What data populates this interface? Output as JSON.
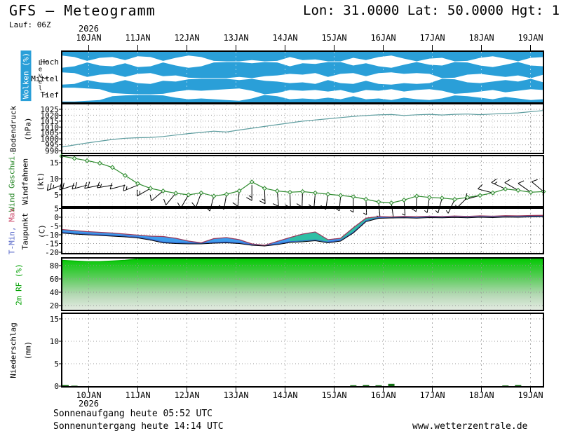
{
  "header": {
    "title": "GFS – Meteogramm",
    "coords": "Lon: 31.0000 Lat: 50.0000 Hgt: 1",
    "run": "Lauf: 06Z"
  },
  "x_axis": {
    "year": "2026",
    "dates": [
      "10JAN",
      "11JAN",
      "12JAN",
      "13JAN",
      "14JAN",
      "15JAN",
      "16JAN",
      "17JAN",
      "18JAN",
      "19JAN"
    ]
  },
  "panels": {
    "clouds": {
      "label": "Wolken (%)",
      "level_word": "Level",
      "rows": [
        "Hoch",
        "Mittel",
        "Tief"
      ]
    },
    "pressure": {
      "label": "Bodendruck",
      "unit": "(hPa)",
      "ticks": [
        1025,
        1020,
        1015,
        1010,
        1005,
        1000,
        995,
        990
      ]
    },
    "wind": {
      "label_speed": "Wind Geschwi.",
      "label_barbs": "Windfahnen",
      "unit": "(kt)",
      "ticks": [
        15,
        10,
        5
      ]
    },
    "temp": {
      "label_min": "T-Min,",
      "label_max": "Max",
      "label_dew": "Taupunkt",
      "unit": "(C)",
      "ticks": [
        5,
        0,
        -5,
        -10,
        -15,
        -20
      ]
    },
    "rf": {
      "label": "2m RF (%)",
      "ticks": [
        80,
        60,
        40,
        20
      ]
    },
    "precip": {
      "label": "Niederschlag",
      "unit": "(mm)",
      "ticks": [
        15,
        10,
        5,
        0
      ]
    }
  },
  "footer": {
    "sunrise": "Sonnenaufgang heute 05:52 UTC",
    "sunset": "Sonnenuntergang heute 14:14 UTC",
    "site": "www.wetterzentrale.de"
  },
  "colors": {
    "cloud_blue": "#2a9fd8",
    "pressure_line": "#5f9ea0",
    "wind_green": "#2e8b2e",
    "temp_line": "#993a5c",
    "tmin_line": "#3a5fcd",
    "dew_line": "#000000",
    "temp_fill_blue": "#3d9cec",
    "temp_fill_cyan": "#2fbfa5",
    "rf_green": "#00b400",
    "precip_green": "#157015"
  },
  "chart_data": {
    "type": "meteogram",
    "time": {
      "start_label": "10JAN 2026",
      "step_hours": 6,
      "points": 39
    },
    "clouds": {
      "type": "area",
      "levels": [
        "Hoch",
        "Mittel",
        "Tief"
      ],
      "coverage_fraction": {
        "Hoch": [
          0.2,
          0.4,
          0.9,
          0.5,
          0.4,
          0.8,
          0.3,
          0.4,
          0.9,
          0.5,
          0.2,
          0.4,
          0.9,
          1,
          1,
          0.8,
          1,
          0.9,
          0.4,
          0.8,
          0.7,
          1,
          1,
          0.5,
          0.8,
          0.4,
          0.2,
          0.6,
          1,
          0.6,
          0.5,
          1,
          0.9,
          0.5,
          0.3,
          0.6,
          1,
          0.5,
          0.4
        ],
        "Mittel": [
          0.2,
          0.3,
          0.8,
          0.5,
          0.4,
          0.8,
          0.4,
          0.3,
          0.7,
          0.6,
          0.9,
          1,
          1,
          1,
          0.8,
          1,
          0.7,
          0.6,
          0.4,
          0.5,
          0.3,
          0.8,
          0.4,
          0.3,
          0.7,
          0.3,
          0.2,
          0.4,
          0.3,
          0.4,
          1,
          0.9,
          0.5,
          0.4,
          0.6,
          0.8,
          0.6,
          1,
          0.5
        ],
        "Tief": [
          0.1,
          0.1,
          0.2,
          0.3,
          0.8,
          0.9,
          1,
          1,
          0.9,
          0.6,
          0.4,
          0.5,
          0.4,
          0.3,
          0.2,
          0.5,
          1,
          0.8,
          0.4,
          0.5,
          0.4,
          0.6,
          0.4,
          0.8,
          0.4,
          0.5,
          0.3,
          0.6,
          0.4,
          0.3,
          0.5,
          0.9,
          0.8,
          0.6,
          0.4,
          0.7,
          0.5,
          0.3,
          0.4
        ]
      }
    },
    "pressure": {
      "type": "line",
      "ylabel": "Bodendruck (hPa)",
      "ylim": [
        990,
        1027
      ],
      "values_hpa": [
        993,
        994.8,
        996.5,
        998,
        999.5,
        1000.5,
        1001,
        1001.2,
        1002,
        1003.2,
        1004.5,
        1005.5,
        1006.5,
        1005.8,
        1007.5,
        1009,
        1010.5,
        1012,
        1013.5,
        1015,
        1016,
        1017,
        1018,
        1019,
        1019.8,
        1020.3,
        1020.6,
        1019.8,
        1020.4,
        1020.8,
        1020.2,
        1020.8,
        1021,
        1020.5,
        1021,
        1021.5,
        1022,
        1023,
        1024
      ]
    },
    "wind": {
      "type": "line",
      "ylabel": "Wind (kt)",
      "ylim": [
        0,
        17
      ],
      "speed_kt": [
        17,
        16.3,
        15.6,
        14.8,
        13.5,
        11,
        8.5,
        7,
        6.2,
        5.5,
        5,
        5.6,
        4.6,
        5.2,
        6.2,
        9,
        7,
        6.2,
        5.8,
        6,
        5.6,
        5.2,
        4.8,
        4.4,
        3.6,
        2.8,
        2.5,
        3.4,
        4.6,
        4.2,
        4,
        3.6,
        4.2,
        4.8,
        5.6,
        6.8,
        6.4,
        5.8,
        6
      ],
      "direction_deg": [
        250,
        252,
        255,
        258,
        260,
        255,
        248,
        240,
        230,
        220,
        210,
        200,
        195,
        190,
        185,
        180,
        178,
        175,
        178,
        182,
        185,
        188,
        185,
        180,
        178,
        175,
        172,
        176,
        182,
        188,
        195,
        205,
        225,
        255,
        285,
        295,
        300,
        305,
        310
      ]
    },
    "temperature": {
      "type": "band",
      "ylabel": "T (C)",
      "ylim": [
        -20,
        5
      ],
      "t_c": [
        -7,
        -7.6,
        -8.2,
        -8.6,
        -9,
        -9.6,
        -10.2,
        -10.8,
        -11,
        -12,
        -13.6,
        -14.6,
        -12.2,
        -11.6,
        -12.8,
        -15.2,
        -16,
        -13.8,
        -11.6,
        -9.6,
        -8.4,
        -12.8,
        -12,
        -6,
        -0.5,
        0.4,
        0.2,
        0.5,
        0.3,
        0.6,
        0.4,
        0.7,
        0.5,
        0.8,
        0.6,
        0.9,
        0.8,
        1,
        1.1
      ],
      "dewpoint_c": [
        -9,
        -9.6,
        -10,
        -10.4,
        -10.8,
        -11.2,
        -11.8,
        -13,
        -14.6,
        -15,
        -15.2,
        -15.2,
        -14.8,
        -14.6,
        -15,
        -16,
        -16.4,
        -15.6,
        -14.4,
        -14,
        -13.4,
        -14.6,
        -13.6,
        -9,
        -2.5,
        -0.6,
        -0.4,
        -0.3,
        -0.5,
        -0.2,
        -0.3,
        -0.1,
        -0.3,
        0,
        -0.2,
        0.1,
        0,
        0.2,
        0.3
      ],
      "cyan_segments": [
        [
          18,
          21
        ],
        [
          22,
          25
        ]
      ]
    },
    "humidity": {
      "type": "area",
      "ylabel": "2m RF (%)",
      "ylim": [
        10,
        90
      ],
      "values_pct": [
        88,
        87,
        86,
        86,
        87,
        88,
        90,
        92,
        95,
        93,
        91,
        90,
        92,
        94,
        96,
        95,
        93,
        94,
        96,
        95,
        96,
        94,
        92,
        95,
        97,
        96,
        95,
        96,
        95,
        94,
        96,
        95,
        93,
        90,
        92,
        96,
        94,
        92,
        90
      ]
    },
    "precip": {
      "type": "bar",
      "ylabel": "Niederschlag (mm)",
      "ylim": [
        0,
        16.5
      ],
      "values_mm": [
        0.25,
        0.1,
        0,
        0,
        0,
        0,
        0,
        0,
        0,
        0,
        0,
        0,
        0,
        0,
        0,
        0,
        0,
        0,
        0,
        0,
        0,
        0,
        0,
        0.2,
        0.25,
        0.2,
        0.5,
        0,
        0,
        0,
        0,
        0,
        0,
        0,
        0,
        0.15,
        0.25,
        0,
        0
      ]
    }
  }
}
